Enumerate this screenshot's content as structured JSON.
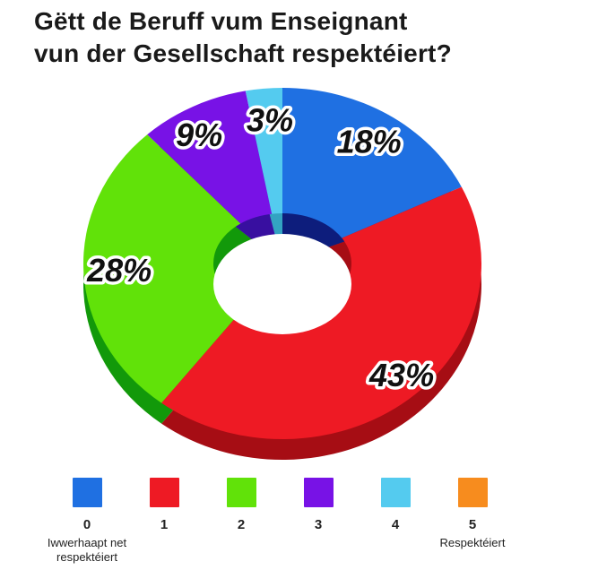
{
  "title": {
    "line1": "Gëtt de Beruff vum Enseignant",
    "line2": "vun der Gesellschaft respektéiert?"
  },
  "chart_data": {
    "type": "pie",
    "style": "3d-donut",
    "title": "Gëtt de Beruff vum Enseignant vun der Gesellschaft respektéiert?",
    "unit": "%",
    "start_angle_deg": 0,
    "clockwise": true,
    "legend_position": "bottom",
    "slices": [
      {
        "label": "0",
        "value": 18,
        "display": "18%",
        "color": "#1F70E2",
        "dark": "#0D1D7C"
      },
      {
        "label": "1",
        "value": 43,
        "display": "43%",
        "color": "#EE1A24",
        "dark": "#A60D14"
      },
      {
        "label": "2",
        "value": 28,
        "display": "28%",
        "color": "#61E209",
        "dark": "#12990A"
      },
      {
        "label": "3",
        "value": 9,
        "display": "9%",
        "color": "#7812E6",
        "dark": "#380FA0"
      },
      {
        "label": "4",
        "value": 3,
        "display": "3%",
        "color": "#54CBEF",
        "dark": "#33A3C2"
      }
    ]
  },
  "legend": {
    "items": [
      {
        "value": "0",
        "color": "#1F70E2",
        "sublabel": "Iwwerhaapt net respektéiert"
      },
      {
        "value": "1",
        "color": "#EE1A24",
        "sublabel": ""
      },
      {
        "value": "2",
        "color": "#61E209",
        "sublabel": ""
      },
      {
        "value": "3",
        "color": "#7812E6",
        "sublabel": ""
      },
      {
        "value": "4",
        "color": "#54CBEF",
        "sublabel": ""
      },
      {
        "value": "5",
        "color": "#F78C1E",
        "sublabel": "Respektéiert"
      }
    ]
  }
}
